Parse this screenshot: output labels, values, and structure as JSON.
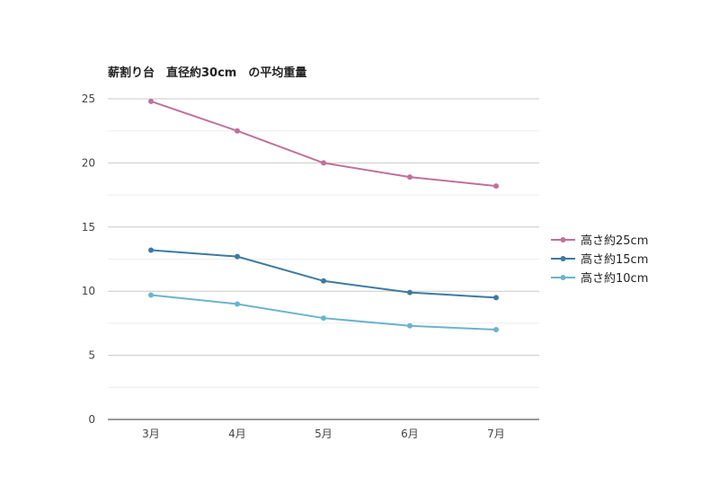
{
  "chart_data": {
    "type": "line",
    "title": "薪割り台　直径約30cm　の平均重量",
    "categories": [
      "3月",
      "4月",
      "5月",
      "6月",
      "7月"
    ],
    "ylim": [
      0,
      25
    ],
    "yticks": [
      "0",
      "5",
      "10",
      "15",
      "20",
      "25"
    ],
    "grid": true,
    "legend_position": "right",
    "series": [
      {
        "name": "高さ約25cm",
        "color": "#c0719a",
        "values": [
          24.8,
          22.5,
          20.0,
          18.9,
          18.2
        ]
      },
      {
        "name": "高さ約15cm",
        "color": "#3d7aa0",
        "values": [
          13.2,
          12.7,
          10.8,
          9.9,
          9.5
        ]
      },
      {
        "name": "高さ約10cm",
        "color": "#6ab4cc",
        "values": [
          9.7,
          9.0,
          7.9,
          7.3,
          7.0
        ]
      }
    ]
  }
}
